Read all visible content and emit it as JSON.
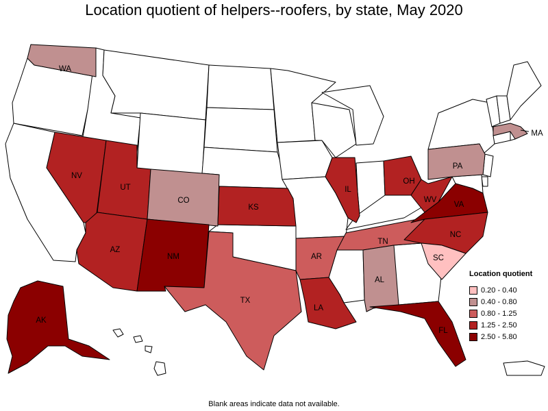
{
  "title": "Location quotient of helpers--roofers, by state, May 2020",
  "footnote": "Blank areas indicate data not available.",
  "legend": {
    "title": "Location quotient",
    "items": [
      {
        "label": "0.20 - 0.40",
        "color": "#ffc0c0"
      },
      {
        "label": "0.40 - 0.80",
        "color": "#c09090"
      },
      {
        "label": "0.80 - 1.25",
        "color": "#cd5c5c"
      },
      {
        "label": "1.25 - 2.50",
        "color": "#b22222"
      },
      {
        "label": "2.50 - 5.80",
        "color": "#8b0000"
      }
    ]
  },
  "states": {
    "WA": {
      "label": "WA",
      "class": "0.40 - 0.80"
    },
    "CO": {
      "label": "CO",
      "class": "0.40 - 0.80"
    },
    "PA": {
      "label": "PA",
      "class": "0.40 - 0.80"
    },
    "AL": {
      "label": "AL",
      "class": "0.40 - 0.80"
    },
    "MA": {
      "label": "MA",
      "class": "0.40 - 0.80"
    },
    "TX": {
      "label": "TX",
      "class": "0.80 - 1.25"
    },
    "AR": {
      "label": "AR",
      "class": "0.80 - 1.25"
    },
    "TN": {
      "label": "TN",
      "class": "0.80 - 1.25"
    },
    "WV": {
      "label": "WV",
      "class": "1.25 - 2.50"
    },
    "NV": {
      "label": "NV",
      "class": "1.25 - 2.50"
    },
    "UT": {
      "label": "UT",
      "class": "1.25 - 2.50"
    },
    "AZ": {
      "label": "AZ",
      "class": "1.25 - 2.50"
    },
    "KS": {
      "label": "KS",
      "class": "1.25 - 2.50"
    },
    "IL": {
      "label": "IL",
      "class": "1.25 - 2.50"
    },
    "OH": {
      "label": "OH",
      "class": "1.25 - 2.50"
    },
    "LA": {
      "label": "LA",
      "class": "1.25 - 2.50"
    },
    "NC": {
      "label": "NC",
      "class": "1.25 - 2.50"
    },
    "SC": {
      "label": "SC",
      "class": "0.20 - 0.40"
    },
    "NM": {
      "label": "NM",
      "class": "2.50 - 5.80"
    },
    "AK": {
      "label": "AK",
      "class": "2.50 - 5.80"
    },
    "VA": {
      "label": "VA",
      "class": "2.50 - 5.80"
    },
    "FL": {
      "label": "FL",
      "class": "2.50 - 5.80"
    }
  }
}
